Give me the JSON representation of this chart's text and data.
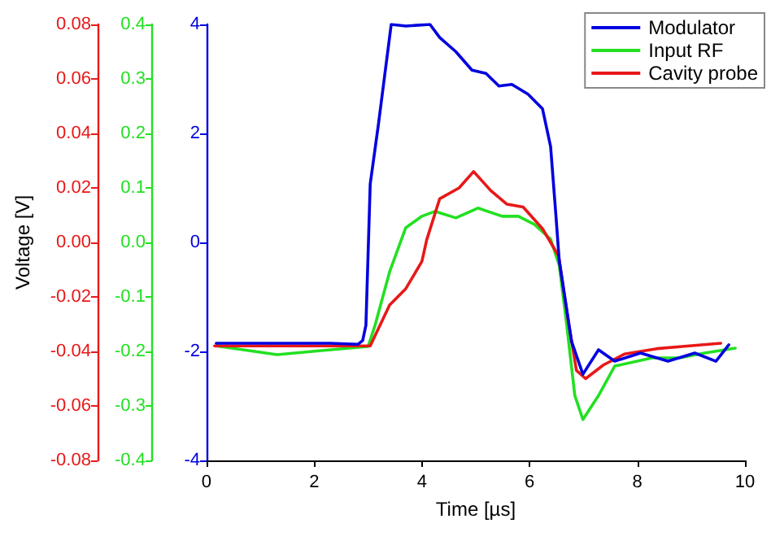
{
  "chart_data": {
    "type": "line",
    "xlabel": "Time [µs]",
    "ylabel": "Voltage [V]",
    "xlim": [
      0,
      10
    ],
    "xticks": [
      0,
      2,
      4,
      6,
      8,
      10
    ],
    "ylim": [
      -0.08,
      0.08
    ],
    "yticks": [
      -0.08,
      -0.06,
      -0.04,
      -0.02,
      {
        "value": 0,
        "label": "0.00"
      },
      0.02,
      0.04,
      0.06,
      0.08
    ],
    "y2lim": [
      -0.4,
      0.4
    ],
    "y2ticks": [
      -0.4,
      -0.3,
      -0.2,
      -0.1,
      {
        "value": 0,
        "label": "0.0"
      },
      0.1,
      0.2,
      0.3,
      0.4
    ],
    "y3lim": [
      -4,
      4
    ],
    "y3ticks": [
      -4,
      -2,
      0,
      2,
      4
    ],
    "grid": false,
    "legend": "top right",
    "line_style": "solid",
    "marker": "none",
    "series": [
      {
        "name": "Modulator",
        "color": "#0000e0",
        "axis": "y3",
        "x": [
          0.18,
          1.3,
          2.3,
          2.81,
          2.9,
          2.96,
          3.04,
          3.19,
          3.43,
          3.7,
          4.15,
          4.33,
          4.63,
          4.93,
          5.19,
          5.43,
          5.67,
          5.97,
          6.24,
          6.39,
          6.49,
          6.55,
          6.78,
          6.99,
          7.28,
          7.58,
          8.06,
          8.57,
          9.07,
          9.46,
          9.7
        ],
        "values": [
          -1.85,
          -1.85,
          -1.85,
          -1.87,
          -1.8,
          -1.52,
          1.07,
          2.15,
          4.0,
          3.97,
          4.0,
          3.76,
          3.5,
          3.16,
          3.1,
          2.87,
          2.9,
          2.72,
          2.45,
          1.76,
          0.48,
          -0.33,
          -1.82,
          -2.42,
          -1.97,
          -2.18,
          -2.03,
          -2.18,
          -2.03,
          -2.18,
          -1.88
        ]
      },
      {
        "name": "Input RF",
        "color": "#22e022",
        "axis": "y2",
        "x": [
          0.18,
          1.31,
          2.3,
          3.0,
          3.13,
          3.4,
          3.7,
          4.0,
          4.24,
          4.63,
          5.04,
          5.49,
          5.79,
          6.09,
          6.39,
          6.55,
          6.69,
          6.84,
          6.99,
          7.28,
          7.58,
          8.27,
          8.78,
          9.25,
          9.82
        ],
        "values": [
          -0.19,
          -0.206,
          -0.197,
          -0.191,
          -0.152,
          -0.054,
          0.027,
          0.048,
          0.057,
          0.045,
          0.063,
          0.048,
          0.048,
          0.033,
          0.006,
          -0.042,
          -0.152,
          -0.281,
          -0.325,
          -0.281,
          -0.227,
          -0.212,
          -0.212,
          -0.203,
          -0.194
        ]
      },
      {
        "name": "Cavity probe",
        "color": "#e81818",
        "axis": "y",
        "x": [
          0.15,
          1.5,
          3.04,
          3.4,
          3.7,
          4.0,
          4.09,
          4.33,
          4.69,
          4.96,
          5.28,
          5.58,
          5.88,
          6.24,
          6.54,
          6.72,
          6.87,
          7.04,
          7.37,
          7.76,
          8.36,
          8.96,
          9.55
        ],
        "values": [
          -0.038,
          -0.038,
          -0.038,
          -0.023,
          -0.017,
          -0.007,
          0.001,
          0.016,
          0.02,
          0.026,
          0.019,
          0.014,
          0.013,
          0.005,
          -0.005,
          -0.029,
          -0.047,
          -0.05,
          -0.045,
          -0.041,
          -0.039,
          -0.038,
          -0.037
        ]
      }
    ]
  }
}
